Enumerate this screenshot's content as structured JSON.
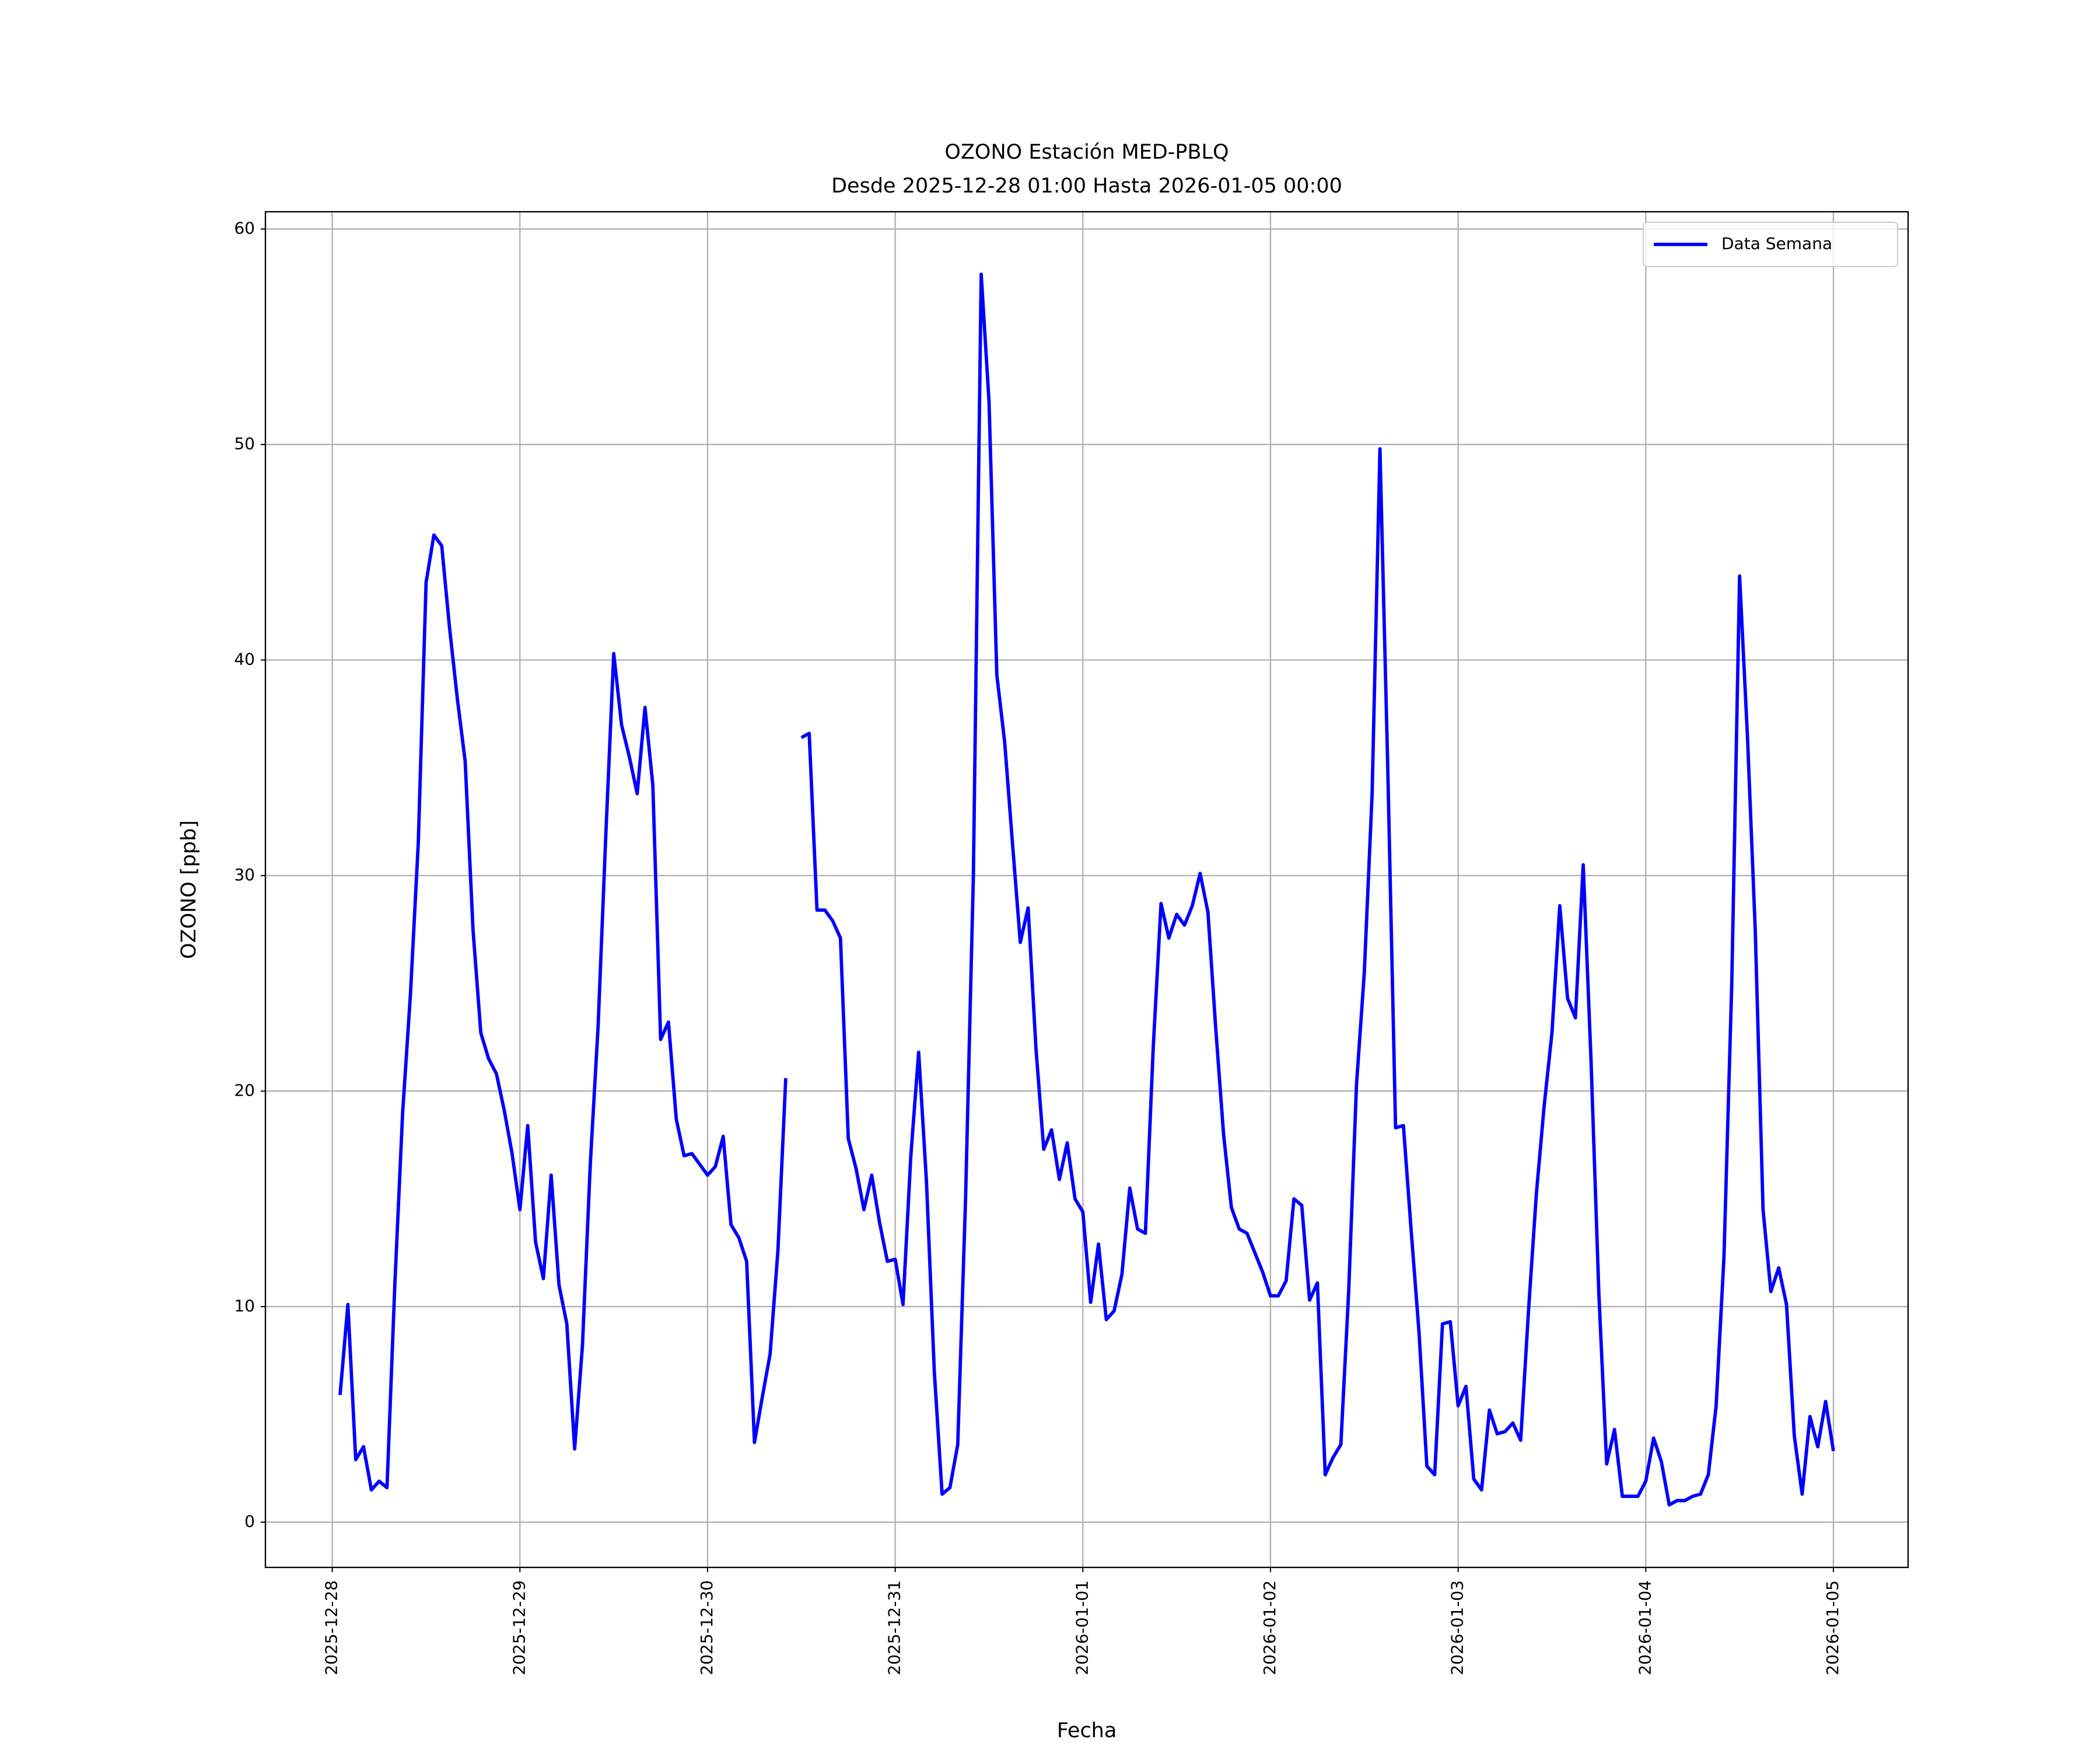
{
  "chart_data": {
    "type": "line",
    "title": "OZONO Estación MED-PBLQ",
    "subtitle": "Desde 2025-12-28 01:00 Hasta 2026-01-05 00:00",
    "xlabel": "Fecha",
    "ylabel": "OZONO [ppb]",
    "x": [
      "2025-12-28 01:00",
      "2025-12-28 02:00",
      "2025-12-28 03:00",
      "2025-12-28 04:00",
      "2025-12-28 05:00",
      "2025-12-28 06:00",
      "2025-12-28 07:00",
      "2025-12-28 08:00",
      "2025-12-28 09:00",
      "2025-12-28 10:00",
      "2025-12-28 11:00",
      "2025-12-28 12:00",
      "2025-12-28 13:00",
      "2025-12-28 14:00",
      "2025-12-28 15:00",
      "2025-12-28 16:00",
      "2025-12-28 17:00",
      "2025-12-28 18:00",
      "2025-12-28 19:00",
      "2025-12-28 20:00",
      "2025-12-28 21:00",
      "2025-12-28 22:00",
      "2025-12-28 23:00",
      "2025-12-29 00:00",
      "2025-12-29 01:00",
      "2025-12-29 02:00",
      "2025-12-29 03:00",
      "2025-12-29 04:00",
      "2025-12-29 05:00",
      "2025-12-29 06:00",
      "2025-12-29 07:00",
      "2025-12-29 08:00",
      "2025-12-29 09:00",
      "2025-12-29 10:00",
      "2025-12-29 11:00",
      "2025-12-29 12:00",
      "2025-12-29 13:00",
      "2025-12-29 14:00",
      "2025-12-29 15:00",
      "2025-12-29 16:00",
      "2025-12-29 17:00",
      "2025-12-29 18:00",
      "2025-12-29 19:00",
      "2025-12-29 20:00",
      "2025-12-29 21:00",
      "2025-12-29 22:00",
      "2025-12-29 23:00",
      "2025-12-30 00:00",
      "2025-12-30 01:00",
      "2025-12-30 02:00",
      "2025-12-30 03:00",
      "2025-12-30 04:00",
      "2025-12-30 05:00",
      "2025-12-30 06:00",
      "2025-12-30 07:00",
      "2025-12-30 08:00",
      "2025-12-30 09:00",
      "2025-12-30 10:00",
      "2025-12-30 11:00",
      "2025-12-30 12:00",
      "2025-12-30 13:00",
      "2025-12-30 14:00",
      "2025-12-30 15:00",
      "2025-12-30 16:00",
      "2025-12-30 17:00",
      "2025-12-30 18:00",
      "2025-12-30 19:00",
      "2025-12-30 20:00",
      "2025-12-30 21:00",
      "2025-12-30 22:00",
      "2025-12-30 23:00",
      "2025-12-31 00:00",
      "2025-12-31 01:00",
      "2025-12-31 02:00",
      "2025-12-31 03:00",
      "2025-12-31 04:00",
      "2025-12-31 05:00",
      "2025-12-31 06:00",
      "2025-12-31 07:00",
      "2025-12-31 08:00",
      "2025-12-31 09:00",
      "2025-12-31 10:00",
      "2025-12-31 11:00",
      "2025-12-31 12:00",
      "2025-12-31 13:00",
      "2025-12-31 14:00",
      "2025-12-31 15:00",
      "2025-12-31 16:00",
      "2025-12-31 17:00",
      "2025-12-31 18:00",
      "2025-12-31 19:00",
      "2025-12-31 20:00",
      "2025-12-31 21:00",
      "2025-12-31 22:00",
      "2025-12-31 23:00",
      "2026-01-01 00:00",
      "2026-01-01 01:00",
      "2026-01-01 02:00",
      "2026-01-01 03:00",
      "2026-01-01 04:00",
      "2026-01-01 05:00",
      "2026-01-01 06:00",
      "2026-01-01 07:00",
      "2026-01-01 08:00",
      "2026-01-01 09:00",
      "2026-01-01 10:00",
      "2026-01-01 11:00",
      "2026-01-01 12:00",
      "2026-01-01 13:00",
      "2026-01-01 14:00",
      "2026-01-01 15:00",
      "2026-01-01 16:00",
      "2026-01-01 17:00",
      "2026-01-01 18:00",
      "2026-01-01 19:00",
      "2026-01-01 20:00",
      "2026-01-01 21:00",
      "2026-01-01 22:00",
      "2026-01-01 23:00",
      "2026-01-02 00:00",
      "2026-01-02 01:00",
      "2026-01-02 02:00",
      "2026-01-02 03:00",
      "2026-01-02 04:00",
      "2026-01-02 05:00",
      "2026-01-02 06:00",
      "2026-01-02 07:00",
      "2026-01-02 08:00",
      "2026-01-02 09:00",
      "2026-01-02 10:00",
      "2026-01-02 11:00",
      "2026-01-02 12:00",
      "2026-01-02 13:00",
      "2026-01-02 14:00",
      "2026-01-02 15:00",
      "2026-01-02 16:00",
      "2026-01-02 17:00",
      "2026-01-02 18:00",
      "2026-01-02 19:00",
      "2026-01-02 20:00",
      "2026-01-02 21:00",
      "2026-01-02 22:00",
      "2026-01-02 23:00",
      "2026-01-03 00:00",
      "2026-01-03 01:00",
      "2026-01-03 02:00",
      "2026-01-03 03:00",
      "2026-01-03 04:00",
      "2026-01-03 05:00",
      "2026-01-03 06:00",
      "2026-01-03 07:00",
      "2026-01-03 08:00",
      "2026-01-03 09:00",
      "2026-01-03 10:00",
      "2026-01-03 11:00",
      "2026-01-03 12:00",
      "2026-01-03 13:00",
      "2026-01-03 14:00",
      "2026-01-03 15:00",
      "2026-01-03 16:00",
      "2026-01-03 17:00",
      "2026-01-03 18:00",
      "2026-01-03 19:00",
      "2026-01-03 20:00",
      "2026-01-03 21:00",
      "2026-01-03 22:00",
      "2026-01-03 23:00",
      "2026-01-04 00:00",
      "2026-01-04 01:00",
      "2026-01-04 02:00",
      "2026-01-04 03:00",
      "2026-01-04 04:00",
      "2026-01-04 05:00",
      "2026-01-04 06:00",
      "2026-01-04 07:00",
      "2026-01-04 08:00",
      "2026-01-04 09:00",
      "2026-01-04 10:00",
      "2026-01-04 11:00",
      "2026-01-04 12:00",
      "2026-01-04 13:00",
      "2026-01-04 14:00",
      "2026-01-04 15:00",
      "2026-01-04 16:00",
      "2026-01-04 17:00",
      "2026-01-04 18:00",
      "2026-01-04 19:00",
      "2026-01-04 20:00",
      "2026-01-04 21:00",
      "2026-01-04 22:00",
      "2026-01-04 23:00",
      "2026-01-05 00:00"
    ],
    "series": [
      {
        "name": "Data Semana",
        "color": "#0000ff",
        "values": [
          5.9,
          10.1,
          2.9,
          3.5,
          1.5,
          1.9,
          1.6,
          11,
          19,
          24.5,
          31.5,
          43.6,
          45.8,
          45.3,
          41.5,
          38.2,
          35.3,
          27.5,
          22.7,
          21.5,
          20.8,
          19.1,
          17.1,
          14.5,
          18.4,
          13.0,
          11.3,
          16.1,
          11.0,
          9.2,
          3.4,
          8.2,
          16.6,
          23.0,
          32.0,
          40.3,
          37.0,
          35.5,
          33.8,
          37.8,
          34.2,
          22.4,
          23.2,
          18.7,
          17.0,
          17.1,
          16.6,
          16.1,
          16.5,
          17.9,
          13.8,
          13.2,
          12.1,
          3.7,
          5.8,
          7.8,
          12.6,
          20.6,
          null,
          36.4,
          36.6,
          28.4,
          28.4,
          27.9,
          27.1,
          17.8,
          16.4,
          14.5,
          16.1,
          13.9,
          12.1,
          12.2,
          10.1,
          17.0,
          21.8,
          15.8,
          7.0,
          1.3,
          1.6,
          3.6,
          15.0,
          30.0,
          57.9,
          52.0,
          39.3,
          36.2,
          31.5,
          26.9,
          28.5,
          22.0,
          17.3,
          18.2,
          15.9,
          17.6,
          15.0,
          14.4,
          10.2,
          12.9,
          9.4,
          9.8,
          11.5,
          15.5,
          13.6,
          13.4,
          22.0,
          28.7,
          27.1,
          28.2,
          27.7,
          28.6,
          30.1,
          28.3,
          22.9,
          18.0,
          14.6,
          13.6,
          13.4,
          12.5,
          11.6,
          10.5,
          10.5,
          11.2,
          15.0,
          14.7,
          10.3,
          11.1,
          2.2,
          3.0,
          3.6,
          10.7,
          20.3,
          25.5,
          33.8,
          49.8,
          35.0,
          18.3,
          18.4,
          13.5,
          8.8,
          2.6,
          2.2,
          9.2,
          9.3,
          5.4,
          6.3,
          2.0,
          1.5,
          5.2,
          4.1,
          4.2,
          4.6,
          3.8,
          9.8,
          15.2,
          19.3,
          22.7,
          28.6,
          24.3,
          23.4,
          30.5,
          21.4,
          10.6,
          2.7,
          4.3,
          1.2,
          1.2,
          1.2,
          1.9,
          3.9,
          2.8,
          0.8,
          1.0,
          1.0,
          1.2,
          1.3,
          2.2,
          5.4,
          12.3,
          25.0,
          43.9,
          36.5,
          27.5,
          14.5,
          10.7,
          11.8,
          10.1,
          4.0,
          1.3,
          4.9,
          3.5,
          5.6,
          3.3
        ]
      }
    ],
    "xlim": [
      "2025-12-27 15:27",
      "2026-01-05 09:33"
    ],
    "xticks": [
      "2025-12-28",
      "2025-12-29",
      "2025-12-30",
      "2025-12-31",
      "2026-01-01",
      "2026-01-02",
      "2026-01-03",
      "2026-01-04",
      "2026-01-05"
    ],
    "ylim": [
      -2.1,
      60.8
    ],
    "yticks": [
      0,
      10,
      20,
      30,
      40,
      50,
      60
    ],
    "grid": true,
    "legend": "upper right"
  }
}
